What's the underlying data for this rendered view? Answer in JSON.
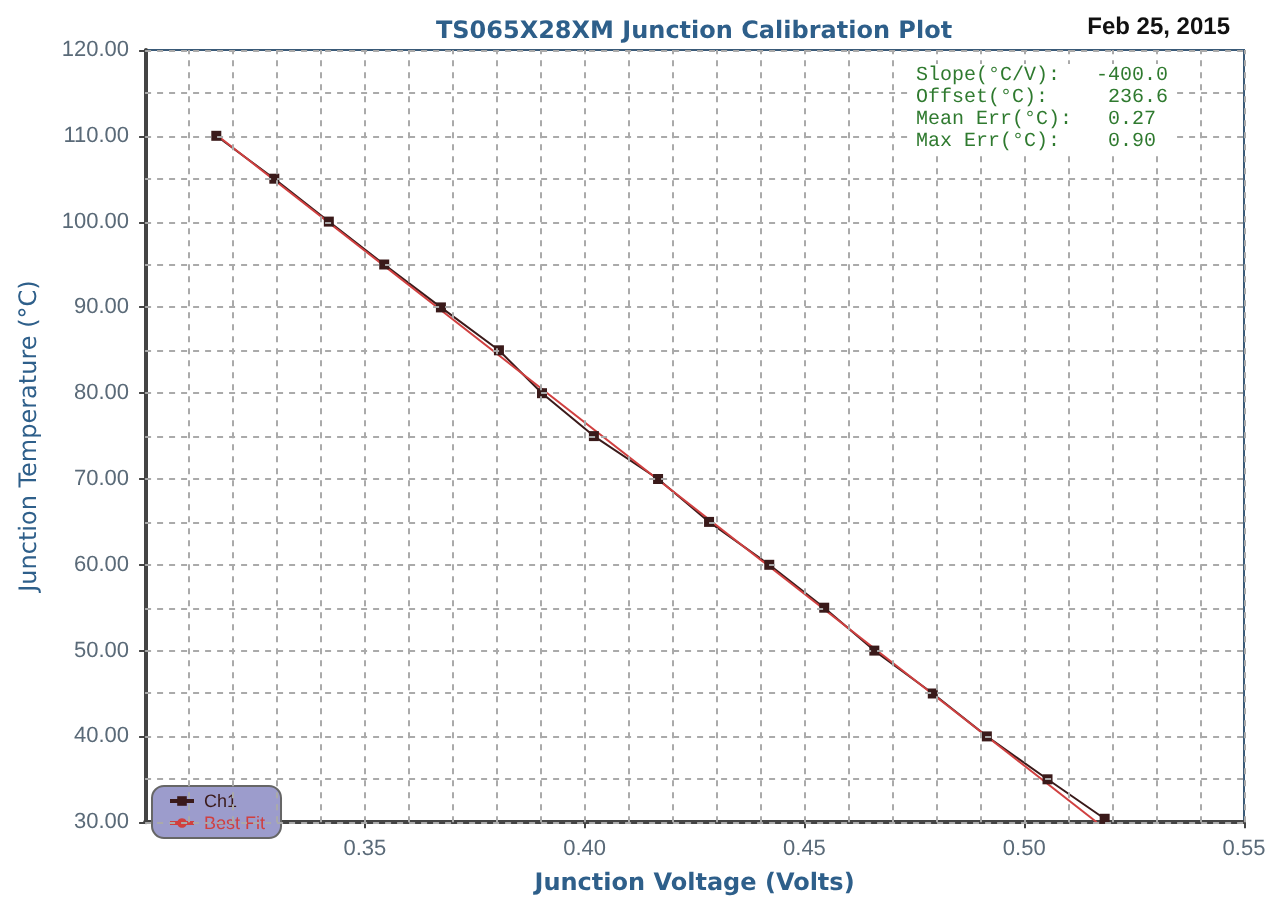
{
  "chart_data": {
    "type": "line",
    "title": "TS065X28XM Junction Calibration Plot",
    "xlabel": "Junction Voltage (Volts)",
    "ylabel": "Junction Temperature (°C)",
    "annotations": [
      "Feb 25, 2015",
      "Slope(°C/V):   -400.0",
      "Offset(°C):     236.6",
      "Mean Err(°C):   0.27",
      "Max Err(°C):    0.90"
    ],
    "series": [
      {
        "name": "Ch1",
        "color": "#3a1a1a",
        "marker": "square",
        "x": [
          0.3162,
          0.3294,
          0.3418,
          0.3544,
          0.3673,
          0.3805,
          0.3903,
          0.4021,
          0.4167,
          0.4283,
          0.442,
          0.4545,
          0.4659,
          0.4792,
          0.4915,
          0.5053,
          0.5183
        ],
        "values": [
          110,
          105,
          100,
          95,
          90,
          85,
          80,
          75,
          70,
          65,
          60,
          55,
          50,
          45,
          40,
          35,
          30.4
        ]
      },
      {
        "name": "Best Fit",
        "color": "#d04040",
        "marker": "none",
        "x": [
          0.3165,
          0.5165
        ],
        "values": [
          110,
          30
        ]
      }
    ],
    "xlim": [
      0.3,
      0.55
    ],
    "ylim": [
      30,
      120
    ],
    "xticks": [
      {
        "value": 0.31,
        "label": null
      },
      {
        "value": 0.32,
        "label": null
      },
      {
        "value": 0.33,
        "label": null
      },
      {
        "value": 0.34,
        "label": null
      },
      0.35,
      {
        "value": 0.36,
        "label": null
      },
      {
        "value": 0.37,
        "label": null
      },
      {
        "value": 0.38,
        "label": null
      },
      {
        "value": 0.39,
        "label": null
      },
      {
        "value": 0.4,
        "label": "0.40"
      },
      {
        "value": 0.41,
        "label": null
      },
      {
        "value": 0.42,
        "label": null
      },
      {
        "value": 0.43,
        "label": null
      },
      {
        "value": 0.44,
        "label": null
      },
      0.45,
      {
        "value": 0.46,
        "label": null
      },
      {
        "value": 0.47,
        "label": null
      },
      {
        "value": 0.48,
        "label": null
      },
      {
        "value": 0.49,
        "label": null
      },
      {
        "value": 0.5,
        "label": "0.50"
      },
      {
        "value": 0.51,
        "label": null
      },
      {
        "value": 0.52,
        "label": null
      },
      {
        "value": 0.53,
        "label": null
      },
      {
        "value": 0.54,
        "label": null
      },
      0.55
    ],
    "yticks": [
      {
        "value": 30,
        "label": "30.00"
      },
      {
        "value": 35,
        "label": null
      },
      {
        "value": 40,
        "label": "40.00"
      },
      {
        "value": 45,
        "label": null
      },
      {
        "value": 50,
        "label": "50.00"
      },
      {
        "value": 55,
        "label": null
      },
      {
        "value": 60,
        "label": "60.00"
      },
      {
        "value": 65,
        "label": null
      },
      {
        "value": 70,
        "label": "70.00"
      },
      {
        "value": 75,
        "label": null
      },
      {
        "value": 80,
        "label": "80.00"
      },
      {
        "value": 85,
        "label": null
      },
      {
        "value": 90,
        "label": "90.00"
      },
      {
        "value": 95,
        "label": null
      },
      {
        "value": 100,
        "label": "100.00"
      },
      {
        "value": 105,
        "label": null
      },
      {
        "value": 110,
        "label": "110.00"
      },
      {
        "value": 115,
        "label": null
      },
      {
        "value": 120,
        "label": "120.00"
      }
    ],
    "grid": true,
    "legend": "bottom left",
    "line_style": "solid"
  }
}
